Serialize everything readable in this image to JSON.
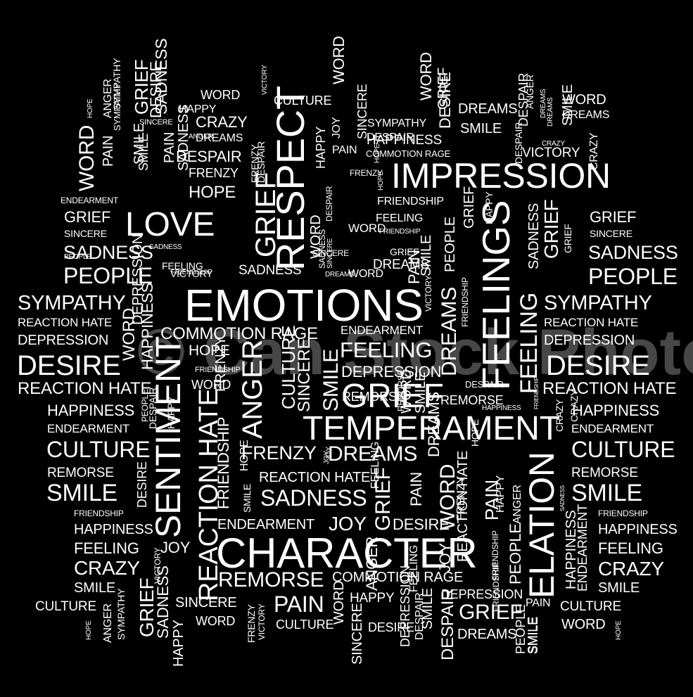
{
  "colors": {
    "background": "#000000",
    "text": "#ffffff",
    "watermark": "rgba(255,255,255,0.28)"
  },
  "watermark": "© Can Stock Photo",
  "words": {
    "w001": "EMOTIONS",
    "w002": "CHARACTER",
    "w003": "IMPRESSION",
    "w004": "TEMPERAMENT",
    "w005": "RESPECT",
    "w006": "FEELINGS",
    "w007": "SENTIMENT",
    "w008": "ELATION",
    "w009": "LOVE",
    "w010": "GRIEF",
    "w011": "DESIRE",
    "w012": "DESIRE",
    "w013": "PEOPLE",
    "w014": "PEOPLE",
    "w015": "SADNESS",
    "w016": "SADNESS",
    "w017": "SYMPATHY",
    "w018": "SYMPATHY",
    "w019": "CULTURE",
    "w020": "CULTURE",
    "w021": "SMILE",
    "w022": "SMILE",
    "w023": "REMORSE",
    "w024": "SADNESS",
    "w025": "DREAMS",
    "w026": "FRENZY",
    "w027": "FEELING",
    "w028": "DEPRESSION",
    "w029": "COMMOTION RAGE",
    "w030": "ENDEARMENT",
    "w031": "REACTION HATE",
    "w032": "REACTION HATE",
    "w033": "REACTION HATE",
    "w034": "REACTION HATE",
    "w035": "DEPRESSION",
    "w036": "DEPRESSION",
    "w037": "HAPPINESS",
    "w038": "HAPPINESS",
    "w039": "ENDEARMENT",
    "w040": "ENDEARMENT",
    "w041": "REMORSE",
    "w042": "REMORSE",
    "w043": "FRIENDSHIP",
    "w044": "FRIENDSHIP",
    "w045": "HAPPINESS",
    "w046": "HAPPINESS",
    "w047": "FEELING",
    "w048": "FEELING",
    "w049": "CRAZY",
    "w050": "CRAZY",
    "w051": "SMILE",
    "w052": "SMILE",
    "w053": "CULTURE",
    "w054": "CULTURE",
    "w055": "WORD",
    "w056": "WORD",
    "w057": "PAIN",
    "w058": "HAPPY",
    "w059": "DESIRE",
    "w060": "REMORSE",
    "w061": "COMMOTION RAGE",
    "w062": "DEPRESSION",
    "w063": "GRIEF",
    "w064": "DREAMS",
    "w065": "JOY",
    "w066": "DESIRE",
    "w067": "ENDEARMENT",
    "w068": "SINCERE",
    "w069": "PAIN",
    "w070": "CULTURE",
    "w071": "WORD",
    "w072": "DREAMS",
    "w073": "FRENZY",
    "w074": "DREAMS",
    "w075": "REACTION HATE",
    "w076": "JOY",
    "w077": "HOPE",
    "w078": "WORD",
    "w079": "DESPAIR",
    "w080": "REMORSE",
    "w081": "SINCERE",
    "w082": "GRIEF",
    "w083": "SADNESS",
    "w084": "FEELING",
    "w085": "FRIENDSHIP",
    "w086": "PAIN",
    "w087": "FRIENDSHIP",
    "w088": "CULTURE",
    "w089": "SINCERE",
    "w090": "GRIEF",
    "w091": "ENDEARMENT",
    "w092": "WORD",
    "w093": "CRAZY",
    "w094": "DREAMS",
    "w095": "SINCERE",
    "w096": "HAPPY",
    "w097": "DESPAIR",
    "w098": "FRENZY",
    "w099": "HOPE",
    "w100": "DESPAIR",
    "w101": "SYMPATHY",
    "w102": "HAPPINESS",
    "w103": "VICTORY",
    "w104": "COMMOTION RAGE",
    "w105": "DREAMS",
    "w106": "WORD",
    "w107": "FRIENDSHIP",
    "w108": "DREAMS",
    "w109": "VICTORY",
    "w110": "CRAZY",
    "w111": "WORD",
    "w112": "ANGER",
    "w113": "GRIEF",
    "w114": "FEELING",
    "w115": "HAPPINESS",
    "w116": "FRIENDSHIP",
    "w117": "SINCERE",
    "w118": "SADNESS",
    "w119": "PEOPLE",
    "w120": "SMILE",
    "w121": "SYMPATHY",
    "w122": "WORD",
    "w123": "SADNESS",
    "w124": "GRIEF",
    "w125": "SMILE",
    "w126": "SYMPATHY",
    "w127": "ANGER",
    "w128": "PAIN",
    "w129": "HOPE",
    "w130": "WORD",
    "w131": "WORD",
    "w132": "PAIN",
    "w133": "PEOPLE",
    "w134": "SMILE",
    "w135": "FEELING",
    "w136": "GRIEF",
    "w137": "SADNESS",
    "w138": "HAPPY",
    "w139": "CRAZY",
    "w140": "FRENZY",
    "w141": "DESPAIR",
    "w142": "HOPE",
    "w143": "FRENZY",
    "w144": "REACTION HATE",
    "w145": "DESPAIR",
    "w146": "DESPAIR",
    "w147": "VICTORY",
    "w148": "HOPE",
    "w149": "SADNESS",
    "w150": "WORD",
    "w151": "HAPPINESS",
    "w152": "DEPRESSION",
    "w153": "ENDEARMENT",
    "w154": "FEELING",
    "w155": "SINCERE",
    "w156": "SMILE",
    "w157": "HOPE",
    "w158": "WORD",
    "w159": "JOY",
    "w160": "FRENZY",
    "w161": "FRIENDSHIP",
    "w162": "SINCERE",
    "w163": "DREAMS",
    "w164": "VICTORY",
    "w165": "GRIEF",
    "w166": "FEELING",
    "w167": "REACTION HATE",
    "w168": "PEOPLE",
    "w169": "DESIRE",
    "w170": "SINCERE",
    "w171": "FRIENDSHIP",
    "w172": "SINCERE",
    "w173": "GRIEF",
    "w174": "HOPE",
    "w175": "FRIENDSHIP",
    "w176": "PAIN",
    "w177": "DESPAIR",
    "w178": "DREAMS",
    "w179": "SMILE",
    "w180": "JOY",
    "w181": "HAPPY",
    "w182": "DESPAIR",
    "w183": "SMILE",
    "w184": "DESIRE",
    "w185": "DREAMS",
    "w186": "HAPPY",
    "w187": "ANGER",
    "w188": "DESIRE",
    "w189": "GRIEF",
    "w190": "HAPPINESS",
    "w191": "SADNESS",
    "w192": "JOY",
    "w193": "GRIEF",
    "w194": "DREAMS",
    "w195": "ANGER",
    "w196": "SMILE",
    "w197": "WORD",
    "w198": "CULTURE",
    "w199": "HOPE",
    "w200": "ANGER",
    "w201": "SYMPATHY",
    "w202": "SADNESS",
    "w203": "PAIN",
    "w204": "FRENZY",
    "w205": "VICTORY",
    "w206": "HAPPY",
    "w207": "WORD",
    "w208": "GRIEF",
    "w209": "HOPE",
    "w210": "CRAZY",
    "w211": "ANGER",
    "w212": "SMILE",
    "w213": "DESPAIR",
    "w214": "FRIENDSHIP",
    "w215": "PEOPLE",
    "w216": "SMILE",
    "w217": "SADNESS",
    "w218": "GRIEF",
    "w219": "SMILE",
    "w220": "JOY",
    "w221": "ANGER",
    "w222": "DEPRESSION",
    "w223": "FRIENDSHIP",
    "w224": "DESPAIR",
    "w225": "VICTORY",
    "w226": "PEOPLE",
    "w227": "HAPPY",
    "w228": "WORD",
    "w229": "PAIN",
    "w230": "SMILE",
    "w231": "CRAZY",
    "w232": "REMORSE"
  }
}
